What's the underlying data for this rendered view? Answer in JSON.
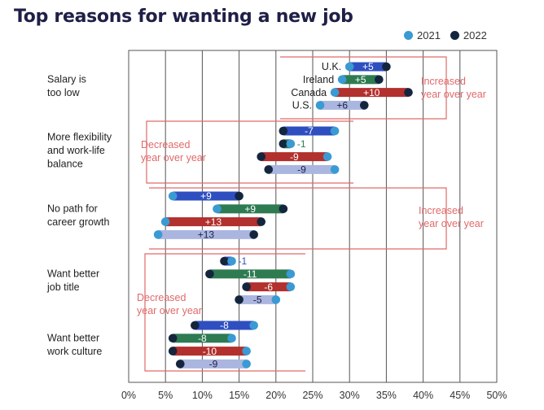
{
  "title": "Top reasons for wanting a new job",
  "legend": [
    {
      "label": "2021",
      "color": "#3a9ad3"
    },
    {
      "label": "2022",
      "color": "#14263d"
    }
  ],
  "colors": {
    "uk": "#2f4fc0",
    "ireland": "#2e7b52",
    "canada": "#b2302d",
    "us": "#aab6df",
    "dot2021": "#3a9ad3",
    "dot2022": "#14263d",
    "annotation": "#e06a6a",
    "grid": "#555555"
  },
  "chart_data": {
    "type": "dumbbell",
    "title": "Top reasons for wanting a new job",
    "x_ticks": [
      "0%",
      "5%",
      "10%",
      "15%",
      "20%",
      "25%",
      "30%",
      "35%",
      "40%",
      "45%",
      "50%"
    ],
    "xlim": [
      0,
      50
    ],
    "countries": [
      "U.K.",
      "Ireland",
      "Canada",
      "U.S."
    ],
    "groups": [
      {
        "label_lines": [
          "Salary is",
          "too low"
        ],
        "show_country_labels": true,
        "annotation": [
          "Increased",
          "year over year"
        ],
        "rows": [
          {
            "country": "U.K.",
            "y2021": 30,
            "y2022": 35,
            "change": "+5"
          },
          {
            "country": "Ireland",
            "y2021": 29,
            "y2022": 34,
            "change": "+5"
          },
          {
            "country": "Canada",
            "y2021": 28,
            "y2022": 38,
            "change": "+10"
          },
          {
            "country": "U.S.",
            "y2021": 26,
            "y2022": 32,
            "change": "+6"
          }
        ]
      },
      {
        "label_lines": [
          "More flexibility",
          "and work-life",
          "balance"
        ],
        "show_country_labels": false,
        "annotation": [
          "Decreased",
          "year over year"
        ],
        "rows": [
          {
            "country": "U.K.",
            "y2021": 28,
            "y2022": 21,
            "change": "-7"
          },
          {
            "country": "Ireland",
            "y2021": 22,
            "y2022": 21,
            "change": "-1"
          },
          {
            "country": "Canada",
            "y2021": 27,
            "y2022": 18,
            "change": "-9"
          },
          {
            "country": "U.S.",
            "y2021": 28,
            "y2022": 19,
            "change": "-9"
          }
        ]
      },
      {
        "label_lines": [
          "No path for",
          "career growth"
        ],
        "show_country_labels": false,
        "annotation": [
          "Increased",
          "year over year"
        ],
        "rows": [
          {
            "country": "U.K.",
            "y2021": 6,
            "y2022": 15,
            "change": "+9"
          },
          {
            "country": "Ireland",
            "y2021": 12,
            "y2022": 21,
            "change": "+9"
          },
          {
            "country": "Canada",
            "y2021": 5,
            "y2022": 18,
            "change": "+13"
          },
          {
            "country": "U.S.",
            "y2021": 4,
            "y2022": 17,
            "change": "+13"
          }
        ]
      },
      {
        "label_lines": [
          "Want better",
          "job title"
        ],
        "show_country_labels": false,
        "annotation": [
          "Decreased",
          "year over year"
        ],
        "rows": [
          {
            "country": "U.K.",
            "y2021": 14,
            "y2022": 13,
            "change": "-1"
          },
          {
            "country": "Ireland",
            "y2021": 22,
            "y2022": 11,
            "change": "-11"
          },
          {
            "country": "Canada",
            "y2021": 22,
            "y2022": 16,
            "change": "-6"
          },
          {
            "country": "U.S.",
            "y2021": 20,
            "y2022": 15,
            "change": "-5"
          }
        ]
      },
      {
        "label_lines": [
          "Want better",
          "work culture"
        ],
        "show_country_labels": false,
        "annotation": [],
        "rows": [
          {
            "country": "U.K.",
            "y2021": 17,
            "y2022": 9,
            "change": "-8"
          },
          {
            "country": "Ireland",
            "y2021": 14,
            "y2022": 6,
            "change": "-8"
          },
          {
            "country": "Canada",
            "y2021": 16,
            "y2022": 6,
            "change": "-10"
          },
          {
            "country": "U.S.",
            "y2021": 16,
            "y2022": 7,
            "change": "-9"
          }
        ]
      }
    ]
  }
}
